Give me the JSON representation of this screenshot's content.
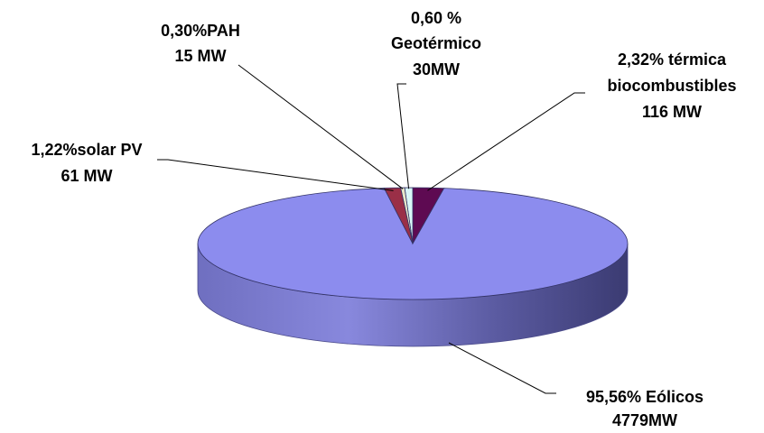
{
  "chart_data": {
    "type": "pie",
    "title": "",
    "slices": [
      {
        "label": "Eólicos",
        "value": 4779,
        "percent_text": "95,56% Eólicos",
        "value_text": "4779MW",
        "color": "#8C8CEE"
      },
      {
        "label": "térmica biocombustibles",
        "value": 116,
        "percent_text": "2,32%  térmica",
        "line2_text": "biocombustibles",
        "value_text": "116 MW",
        "color": "#5E0A52"
      },
      {
        "label": "Geotérmico",
        "value": 30,
        "percent_text": "0,60 %",
        "line2_text": "Geotérmico",
        "value_text": "30MW",
        "color": "#D9F7F7"
      },
      {
        "label": "PAH",
        "value": 15,
        "percent_text": "0,30%PAH",
        "value_text": "15 MW",
        "color": "#E8E8C8"
      },
      {
        "label": "solar PV",
        "value": 61,
        "percent_text": "1,22%solar PV",
        "value_text": "61 MW",
        "color": "#9A2F47"
      }
    ],
    "legend": "none",
    "style": "3d-pie-with-leader-lines"
  }
}
